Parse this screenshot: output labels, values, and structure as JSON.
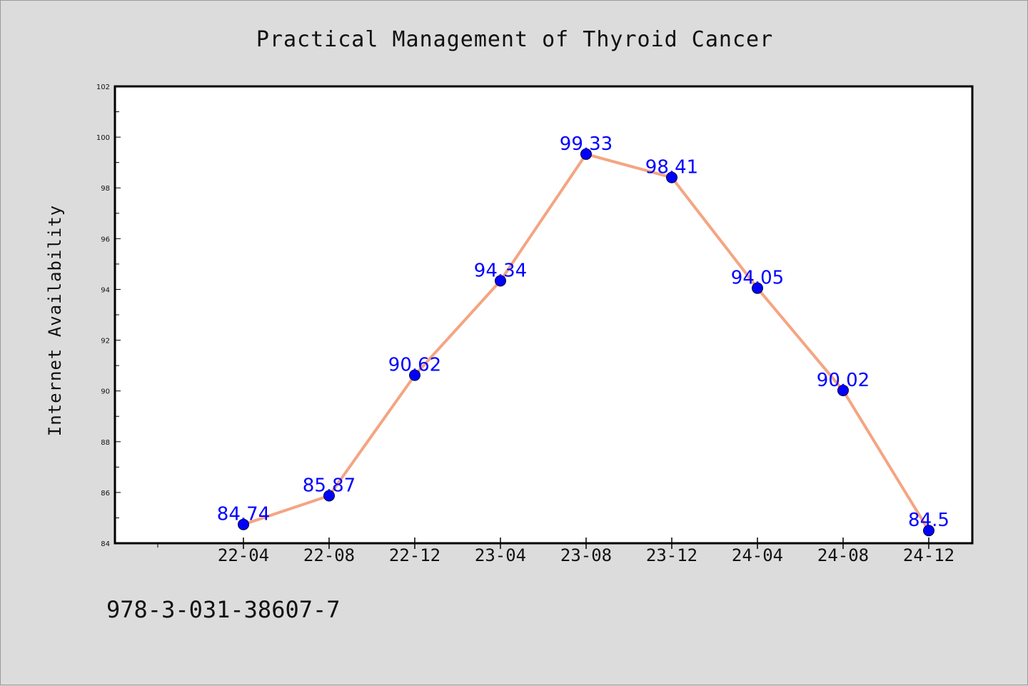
{
  "chart_data": {
    "type": "line",
    "title": "Practical Management of Thyroid Cancer",
    "xlabel": "",
    "ylabel": "Internet Availability",
    "categories": [
      "22-04",
      "22-08",
      "22-12",
      "23-04",
      "23-08",
      "23-12",
      "24-04",
      "24-08",
      "24-12"
    ],
    "series": [
      {
        "values": [
          84.74,
          85.87,
          90.62,
          94.34,
          99.33,
          98.41,
          94.05,
          90.02,
          84.5
        ],
        "labels": [
          "84.74",
          "85.87",
          "90.62",
          "94.34",
          "99.33",
          "98.41",
          "94.05",
          "90.02",
          "84.5"
        ]
      }
    ],
    "ylim": [
      84,
      102
    ],
    "yticks": [
      "84",
      "86",
      "88",
      "90",
      "92",
      "94",
      "96",
      "98",
      "100",
      "102"
    ],
    "grid": false,
    "legend": "none",
    "line_color": "#f4a582",
    "marker_color": "#0000ff",
    "label_color": "#0000ff"
  },
  "footer": {
    "isbn": "978-3-031-38607-7"
  }
}
